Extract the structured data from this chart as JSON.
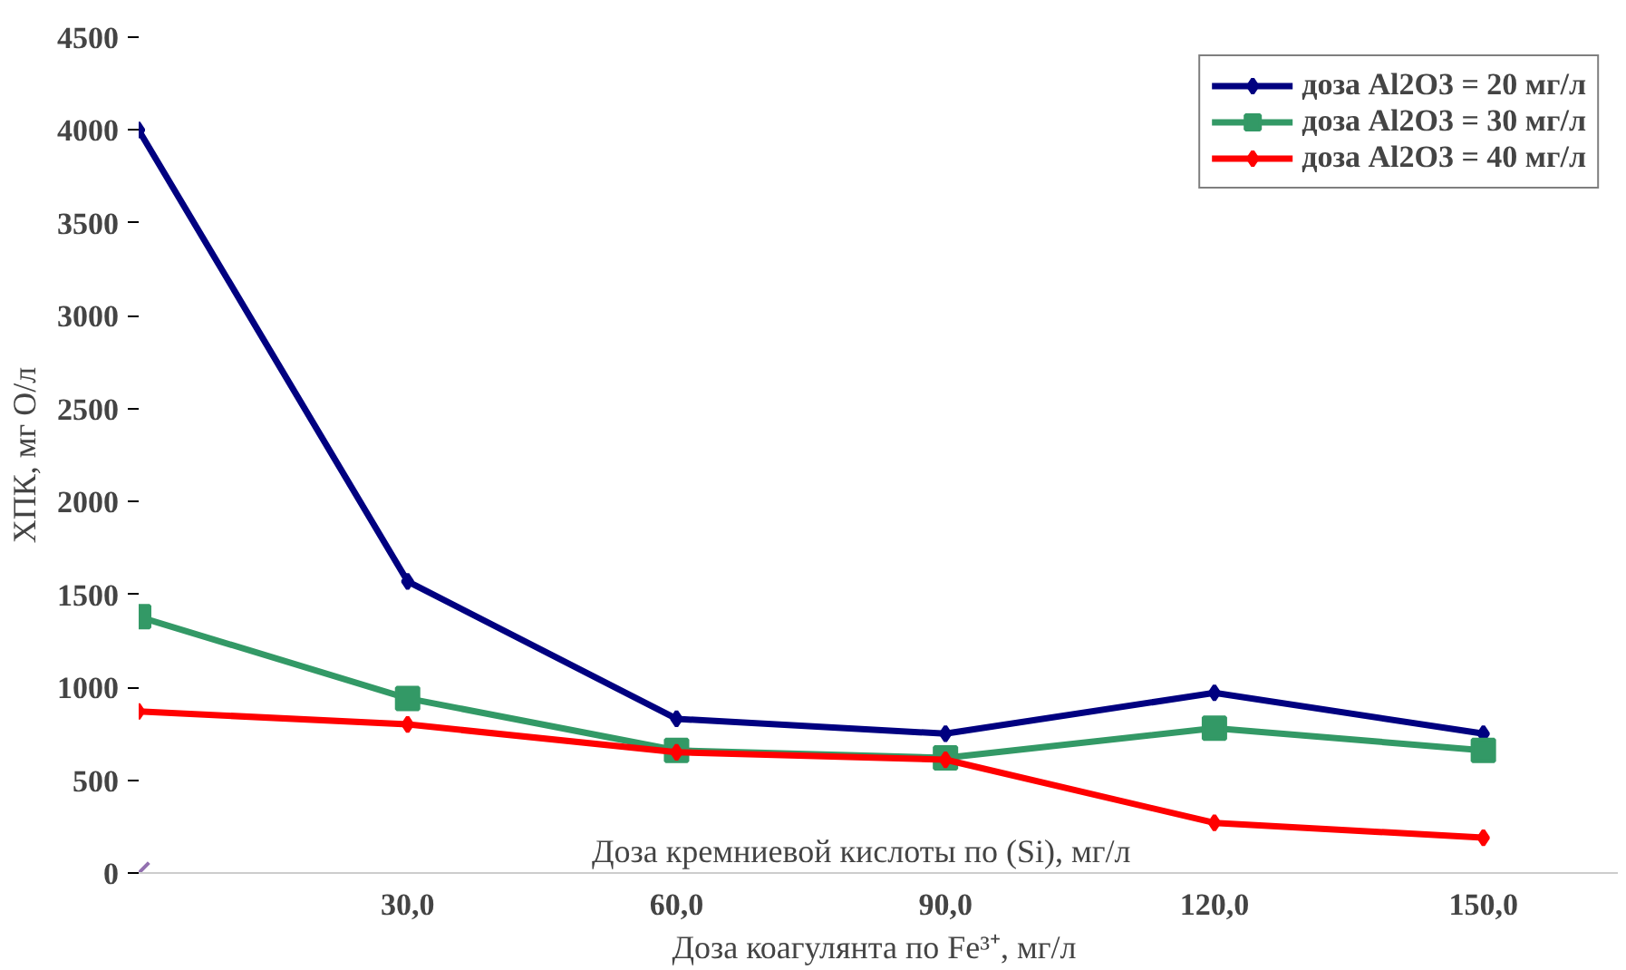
{
  "chart_data": {
    "type": "line",
    "xlabel": "Доза  коагулянта по Fe³⁺, мг/л",
    "ylabel": "ХПК, мг О/л",
    "x": [
      0,
      30,
      60,
      90,
      120,
      150
    ],
    "xlim": [
      0,
      165
    ],
    "xticks": [
      {
        "value": 30,
        "label": "30,0"
      },
      {
        "value": 60,
        "label": "60,0"
      },
      {
        "value": 90,
        "label": "90,0"
      },
      {
        "value": 120,
        "label": "120,0"
      },
      {
        "value": 150,
        "label": "150,0"
      }
    ],
    "ylim": [
      0,
      4500
    ],
    "yticks": [
      0,
      500,
      1000,
      1500,
      2000,
      2500,
      3000,
      3500,
      4000,
      4500
    ],
    "series": [
      {
        "name": "доза Al2O3 = 20 мг/л",
        "color": "#000080",
        "marker": "diamond",
        "values": [
          4000,
          1570,
          830,
          750,
          970,
          750
        ]
      },
      {
        "name": "доза Al2O3 = 30 мг/л",
        "color": "#339966",
        "marker": "square",
        "values": [
          1380,
          940,
          660,
          620,
          780,
          660
        ]
      },
      {
        "name": "доза Al2O3 = 40 мг/л",
        "color": "#ff0000",
        "marker": "diamond",
        "values": [
          870,
          800,
          650,
          610,
          270,
          190
        ]
      },
      {
        "type": "scatter",
        "color": "#9370b0",
        "marker": "cross",
        "values": [
          0,
          null,
          null,
          null,
          null,
          null
        ]
      }
    ],
    "annotations": [
      "Доза кремниевой кислоты по (Si), мг/л"
    ],
    "legend": "top right",
    "grid": false,
    "line_style": "solid"
  }
}
